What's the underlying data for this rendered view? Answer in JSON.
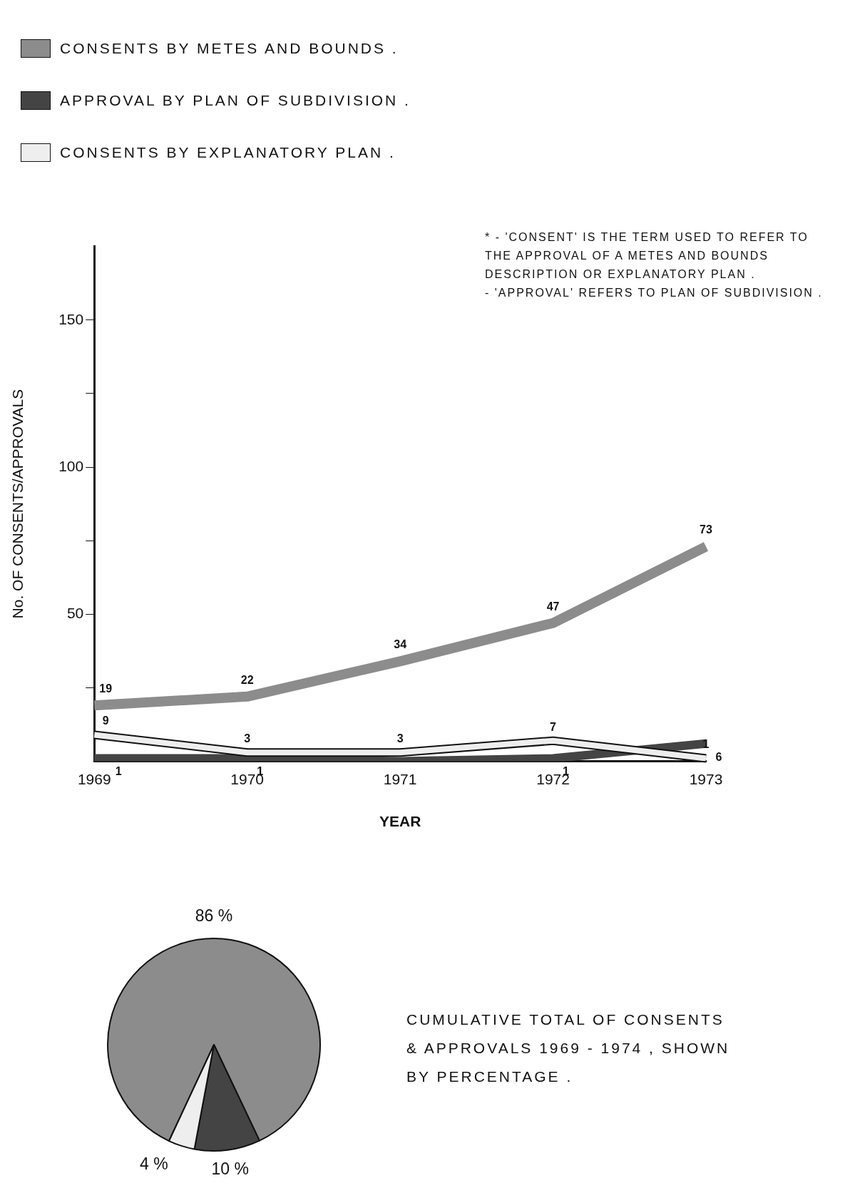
{
  "chart_data": [
    {
      "type": "line",
      "xlabel": "YEAR",
      "ylabel": "No. OF CONSENTS/APPROVALS",
      "categories": [
        "1969",
        "1970",
        "1971",
        "1972",
        "1973"
      ],
      "series": [
        {
          "name": "CONSENTS BY METES AND BOUNDS .",
          "color": "#8c8c8c",
          "values": [
            19,
            22,
            34,
            47,
            73
          ],
          "value_labels": [
            "19",
            "22",
            "34",
            "47",
            "73"
          ]
        },
        {
          "name": "APPROVAL BY PLAN OF SUBDIVISION .",
          "color": "#444444",
          "values": [
            1,
            1,
            0,
            1,
            6
          ],
          "value_labels": [
            "1",
            "1",
            null,
            "1",
            "6"
          ]
        },
        {
          "name": "CONSENTS BY EXPLANATORY PLAN .",
          "color": "#eeeeee",
          "values": [
            9,
            3,
            3,
            7,
            1
          ],
          "value_labels": [
            "9",
            "3",
            "3",
            "7",
            "1"
          ]
        }
      ],
      "ylim": [
        0,
        175
      ],
      "yticks": [
        {
          "value": 25,
          "label": null
        },
        50,
        {
          "value": 75,
          "label": null
        },
        100,
        {
          "value": 125,
          "label": null
        },
        150
      ],
      "grid": false,
      "legend": "top",
      "marker": "none",
      "annotations": [
        "* - 'CONSENT' IS THE TERM USED TO REFER TO THE APPROVAL OF A METES AND BOUNDS DESCRIPTION OR EXPLANATORY PLAN .",
        "- 'APPROVAL' REFERS TO PLAN OF SUBDIVISION ."
      ]
    },
    {
      "type": "pie",
      "title": "CUMULATIVE TOTAL OF CONSENTS & APPROVALS 1969 - 1974 , SHOWN BY PERCENTAGE .",
      "categories": [
        null,
        null,
        null
      ],
      "values": [
        86,
        10,
        4
      ],
      "colors": [
        "#8c8c8c",
        "#444444",
        "#eeeeee"
      ],
      "value_labels": [
        "86 %",
        "10 %",
        "4 %"
      ],
      "legend": false
    }
  ]
}
